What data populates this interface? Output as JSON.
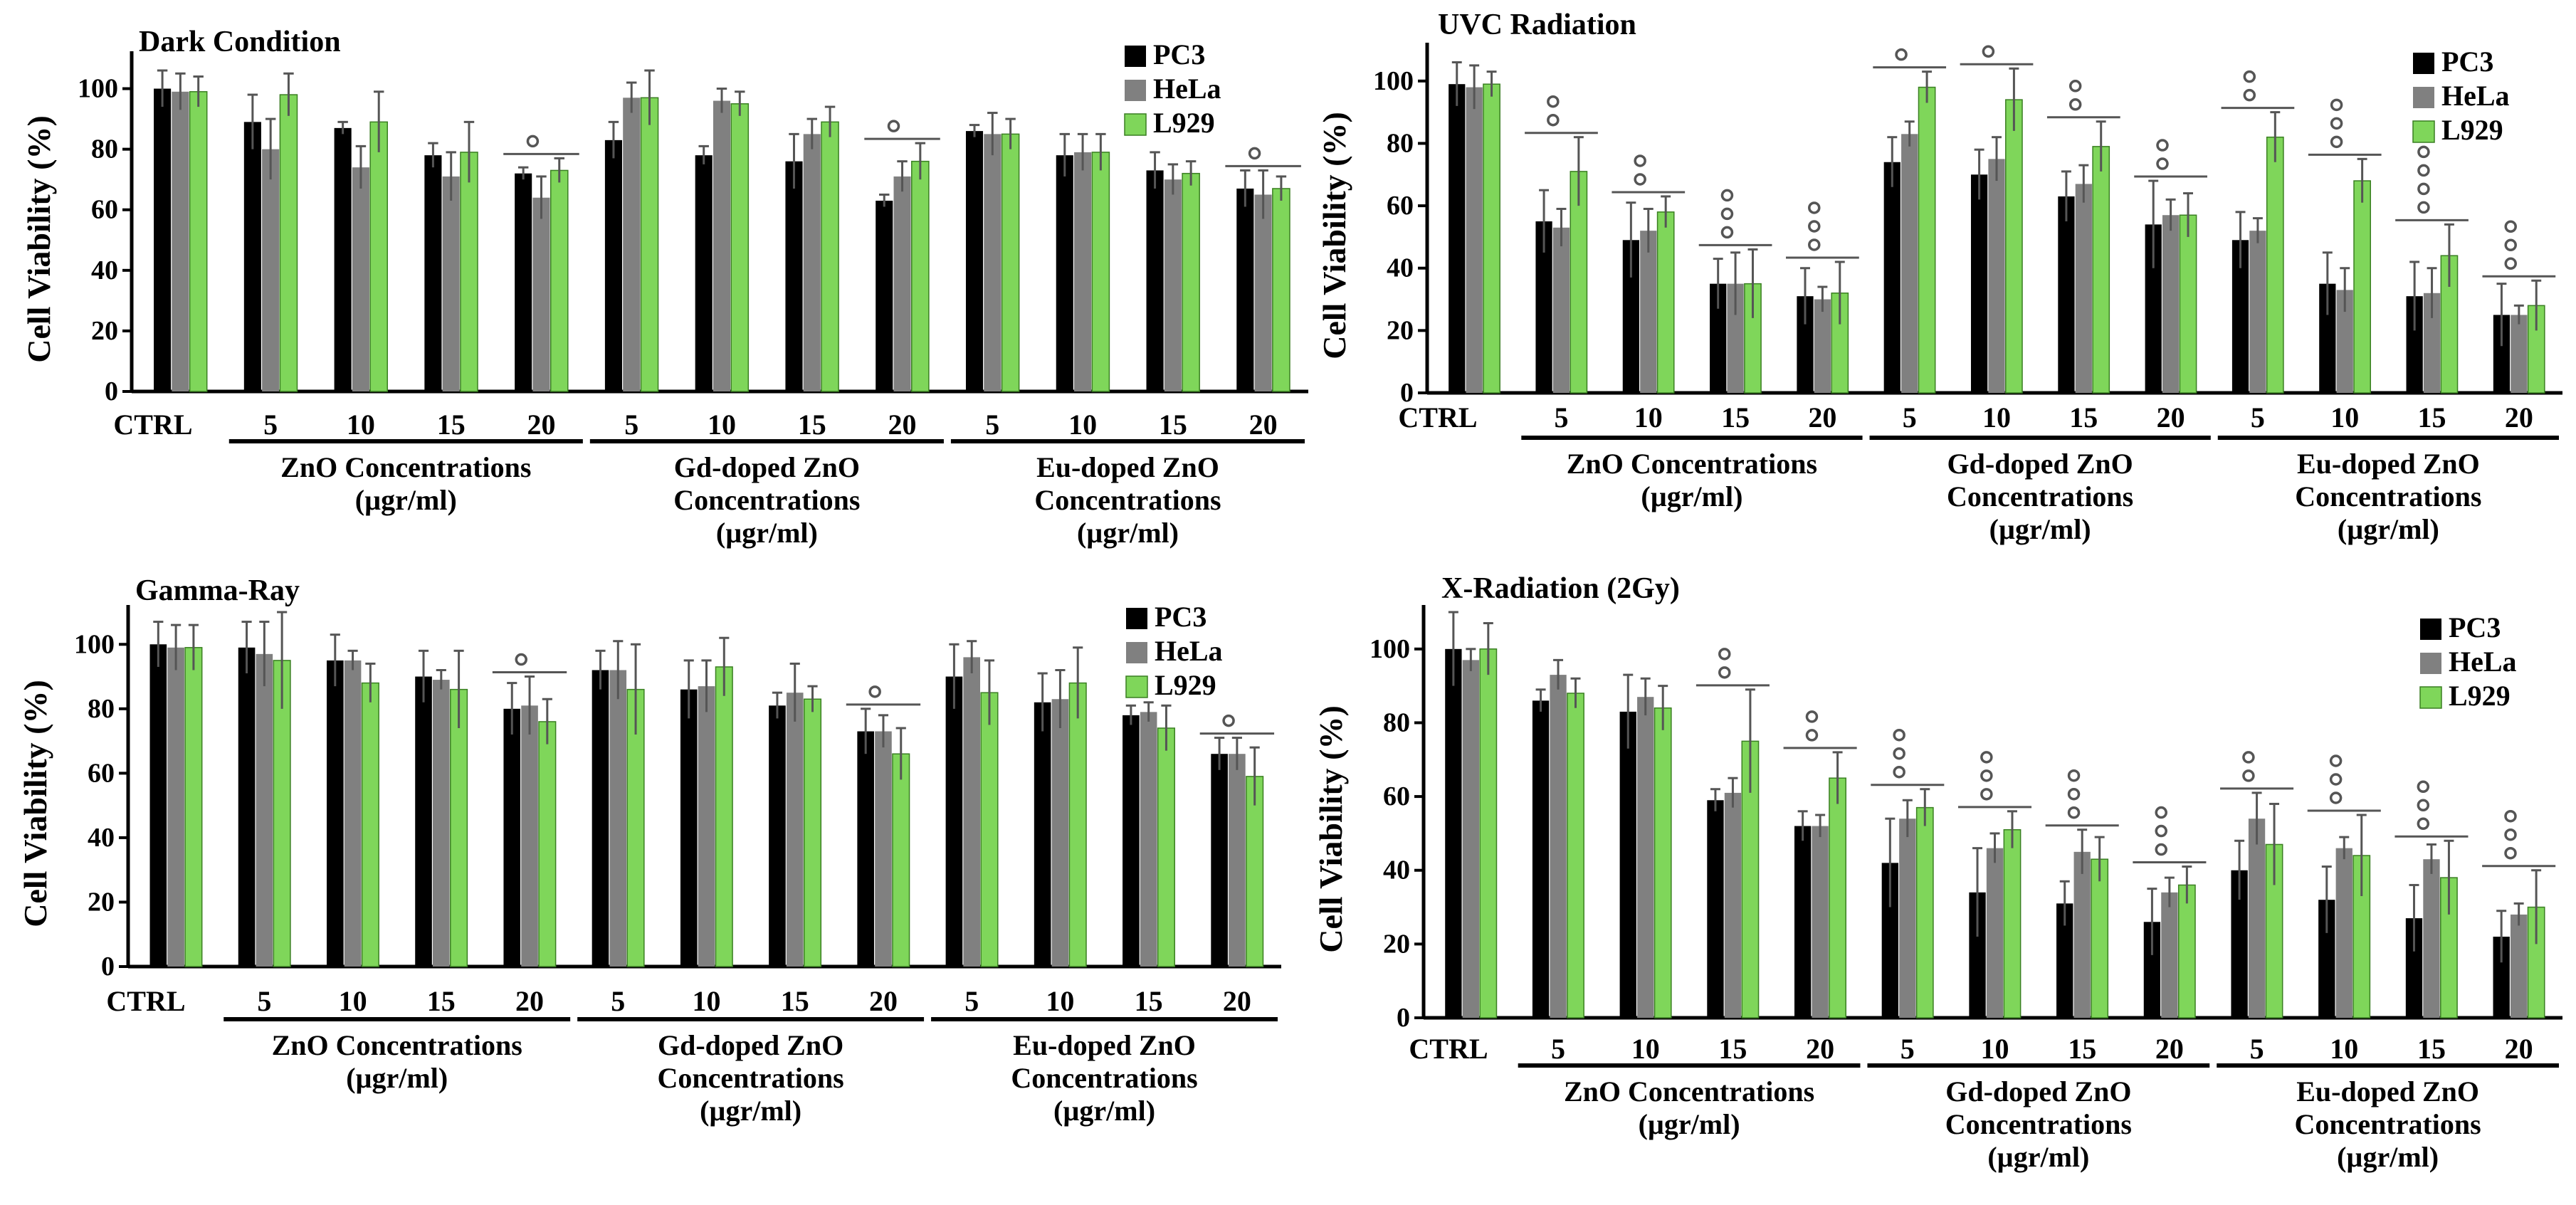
{
  "series_names": [
    "PC3",
    "HeLa",
    "L929"
  ],
  "colors": {
    "PC3": "#000000",
    "HeLa": "#808080",
    "L929": "#7fd65a"
  },
  "chart_data": [
    {
      "type": "bar",
      "title": "Dark Condition",
      "ylabel": "Cell Viability (%)",
      "ylim": [
        0,
        110
      ],
      "yticks": [
        0,
        20,
        40,
        60,
        80,
        100
      ],
      "categories": [
        "CTRL",
        "5",
        "10",
        "15",
        "20",
        "5",
        "10",
        "15",
        "20",
        "5",
        "10",
        "15",
        "20"
      ],
      "groups": [
        {
          "label": "ZnO Concentrations (µgr/ml)",
          "lines": [
            "ZnO Concentrations",
            "(µgr/ml)"
          ],
          "start": 1,
          "end": 4
        },
        {
          "label": "Gd-doped ZnO Concentrations (µgr/ml)",
          "lines": [
            "Gd-doped ZnO",
            "Concentrations",
            "(µgr/ml)"
          ],
          "start": 5,
          "end": 8
        },
        {
          "label": "Eu-doped ZnO Concentrations (µgr/ml)",
          "lines": [
            "Eu-doped ZnO",
            "Concentrations",
            "(µgr/ml)"
          ],
          "start": 9,
          "end": 12
        }
      ],
      "series": [
        {
          "name": "PC3",
          "values": [
            100,
            89,
            87,
            78,
            72,
            83,
            78,
            76,
            63,
            86,
            78,
            73,
            67
          ],
          "errors": [
            6,
            9,
            2,
            4,
            2,
            6,
            3,
            9,
            2,
            2,
            7,
            6,
            6
          ]
        },
        {
          "name": "HeLa",
          "values": [
            99,
            80,
            74,
            71,
            64,
            97,
            96,
            85,
            71,
            85,
            79,
            70,
            65
          ],
          "errors": [
            6,
            10,
            7,
            8,
            7,
            5,
            4,
            5,
            5,
            7,
            6,
            5,
            8
          ]
        },
        {
          "name": "L929",
          "values": [
            99,
            98,
            89,
            79,
            73,
            97,
            95,
            89,
            76,
            85,
            79,
            72,
            67
          ],
          "errors": [
            5,
            7,
            10,
            10,
            4,
            9,
            4,
            5,
            6,
            5,
            6,
            4,
            4
          ]
        }
      ],
      "significance": [
        {
          "cat": 4,
          "count": 1
        },
        {
          "cat": 8,
          "count": 1
        },
        {
          "cat": 12,
          "count": 1
        }
      ]
    },
    {
      "type": "bar",
      "title": "UVC Radiation",
      "ylabel": "Cell Viability (%)",
      "ylim": [
        0,
        110
      ],
      "yticks": [
        0,
        20,
        40,
        60,
        80,
        100
      ],
      "categories": [
        "CTRL",
        "5",
        "10",
        "15",
        "20",
        "5",
        "10",
        "15",
        "20",
        "5",
        "10",
        "15",
        "20"
      ],
      "groups": [
        {
          "label": "ZnO Concentrations (µgr/ml)",
          "lines": [
            "ZnO Concentrations",
            "(µgr/ml)"
          ],
          "start": 1,
          "end": 4
        },
        {
          "label": "Gd-doped ZnO Concentrations (µgr/ml)",
          "lines": [
            "Gd-doped ZnO",
            "Concentrations",
            "(µgr/ml)"
          ],
          "start": 5,
          "end": 8
        },
        {
          "label": "Eu-doped ZnO Concentrations (µgr/ml)",
          "lines": [
            "Eu-doped ZnO",
            "Concentrations",
            "(µgr/ml)"
          ],
          "start": 9,
          "end": 12
        }
      ],
      "series": [
        {
          "name": "PC3",
          "values": [
            99,
            55,
            49,
            35,
            31,
            74,
            70,
            63,
            54,
            49,
            35,
            31,
            25
          ],
          "errors": [
            7,
            10,
            12,
            8,
            9,
            8,
            8,
            8,
            14,
            9,
            10,
            11,
            10
          ]
        },
        {
          "name": "HeLa",
          "values": [
            98,
            53,
            52,
            35,
            30,
            83,
            75,
            67,
            57,
            52,
            33,
            32,
            25
          ],
          "errors": [
            7,
            6,
            7,
            10,
            4,
            4,
            7,
            6,
            5,
            4,
            7,
            8,
            3
          ]
        },
        {
          "name": "L929",
          "values": [
            99,
            71,
            58,
            35,
            32,
            98,
            94,
            79,
            57,
            82,
            68,
            44,
            28
          ],
          "errors": [
            4,
            11,
            5,
            11,
            10,
            5,
            10,
            8,
            7,
            8,
            7,
            10,
            8
          ]
        }
      ],
      "significance": [
        {
          "cat": 1,
          "count": 2
        },
        {
          "cat": 2,
          "count": 2
        },
        {
          "cat": 3,
          "count": 3
        },
        {
          "cat": 4,
          "count": 3
        },
        {
          "cat": 5,
          "count": 1
        },
        {
          "cat": 6,
          "count": 1
        },
        {
          "cat": 7,
          "count": 2
        },
        {
          "cat": 8,
          "count": 2
        },
        {
          "cat": 9,
          "count": 2
        },
        {
          "cat": 10,
          "count": 3
        },
        {
          "cat": 11,
          "count": 4
        },
        {
          "cat": 12,
          "count": 3
        }
      ]
    },
    {
      "type": "bar",
      "title": "Gamma-Ray",
      "ylabel": "Cell Viability (%)",
      "ylim": [
        0,
        110
      ],
      "yticks": [
        0,
        20,
        40,
        60,
        80,
        100
      ],
      "categories": [
        "CTRL",
        "5",
        "10",
        "15",
        "20",
        "5",
        "10",
        "15",
        "20",
        "5",
        "10",
        "15",
        "20"
      ],
      "groups": [
        {
          "label": "ZnO Concentrations (µgr/ml)",
          "lines": [
            "ZnO Concentrations",
            "(µgr/ml)"
          ],
          "start": 1,
          "end": 4
        },
        {
          "label": "Gd-doped ZnO Concentrations (µgr/ml)",
          "lines": [
            "Gd-doped ZnO",
            "Concentrations",
            "(µgr/ml)"
          ],
          "start": 5,
          "end": 8
        },
        {
          "label": "Eu-doped ZnO Concentrations (µgr/ml)",
          "lines": [
            "Eu-doped ZnO",
            "Concentrations",
            "(µgr/ml)"
          ],
          "start": 9,
          "end": 12
        }
      ],
      "series": [
        {
          "name": "PC3",
          "values": [
            100,
            99,
            95,
            90,
            80,
            92,
            86,
            81,
            73,
            90,
            82,
            78,
            66
          ],
          "errors": [
            7,
            8,
            8,
            8,
            8,
            6,
            9,
            4,
            7,
            10,
            9,
            3,
            5
          ]
        },
        {
          "name": "HeLa",
          "values": [
            99,
            97,
            95,
            89,
            81,
            92,
            87,
            85,
            73,
            96,
            83,
            79,
            66
          ],
          "errors": [
            7,
            10,
            3,
            3,
            9,
            9,
            8,
            9,
            5,
            5,
            9,
            3,
            5
          ]
        },
        {
          "name": "L929",
          "values": [
            99,
            95,
            88,
            86,
            76,
            86,
            93,
            83,
            66,
            85,
            88,
            74,
            59
          ],
          "errors": [
            7,
            15,
            6,
            12,
            7,
            14,
            9,
            4,
            8,
            10,
            11,
            7,
            9
          ]
        }
      ],
      "significance": [
        {
          "cat": 4,
          "count": 1
        },
        {
          "cat": 8,
          "count": 1
        },
        {
          "cat": 12,
          "count": 1
        }
      ]
    },
    {
      "type": "bar",
      "title": "X-Radiation (2Gy)",
      "ylabel": "Cell Viability (%)",
      "ylim": [
        0,
        110
      ],
      "yticks": [
        0,
        20,
        40,
        60,
        80,
        100
      ],
      "categories": [
        "CTRL",
        "5",
        "10",
        "15",
        "20",
        "5",
        "10",
        "15",
        "20",
        "5",
        "10",
        "15",
        "20"
      ],
      "groups": [
        {
          "label": "ZnO Concentrations (µgr/ml)",
          "lines": [
            "ZnO Concentrations",
            "(µgr/ml)"
          ],
          "start": 1,
          "end": 4
        },
        {
          "label": "Gd-doped ZnO Concentrations (µgr/ml)",
          "lines": [
            "Gd-doped ZnO",
            "Concentrations",
            "(µgr/ml)"
          ],
          "start": 5,
          "end": 8
        },
        {
          "label": "Eu-doped ZnO Concentrations (µgr/ml)",
          "lines": [
            "Eu-doped ZnO",
            "Concentrations",
            "(µgr/ml)"
          ],
          "start": 9,
          "end": 12
        }
      ],
      "series": [
        {
          "name": "PC3",
          "values": [
            100,
            86,
            83,
            59,
            52,
            42,
            34,
            31,
            26,
            40,
            32,
            27,
            22
          ],
          "errors": [
            10,
            3,
            10,
            3,
            4,
            12,
            12,
            6,
            9,
            8,
            9,
            9,
            7
          ]
        },
        {
          "name": "HeLa",
          "values": [
            97,
            93,
            87,
            61,
            52,
            54,
            46,
            45,
            34,
            54,
            46,
            43,
            28
          ],
          "errors": [
            3,
            4,
            5,
            4,
            3,
            5,
            4,
            6,
            4,
            7,
            3,
            4,
            3
          ]
        },
        {
          "name": "L929",
          "values": [
            100,
            88,
            84,
            75,
            65,
            57,
            51,
            43,
            36,
            47,
            44,
            38,
            30
          ],
          "errors": [
            7,
            4,
            6,
            14,
            7,
            5,
            5,
            6,
            5,
            11,
            11,
            10,
            10
          ]
        }
      ],
      "significance": [
        {
          "cat": 3,
          "count": 2
        },
        {
          "cat": 4,
          "count": 2
        },
        {
          "cat": 5,
          "count": 3
        },
        {
          "cat": 6,
          "count": 3
        },
        {
          "cat": 7,
          "count": 3
        },
        {
          "cat": 8,
          "count": 3
        },
        {
          "cat": 9,
          "count": 2
        },
        {
          "cat": 10,
          "count": 3
        },
        {
          "cat": 11,
          "count": 3
        },
        {
          "cat": 12,
          "count": 3
        }
      ]
    }
  ]
}
